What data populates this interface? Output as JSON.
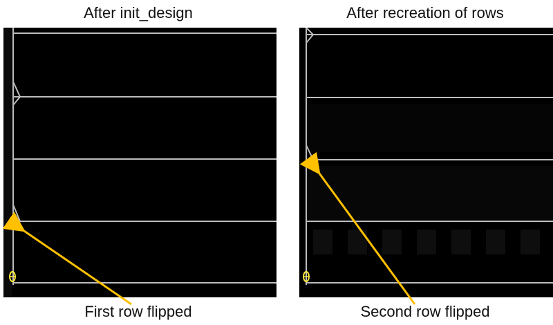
{
  "figure": {
    "left_panel": {
      "title": "After init_design",
      "caption": "First row flipped"
    },
    "right_panel": {
      "title": "After recreation of rows",
      "caption": "Second row flipped"
    },
    "colors": {
      "background": "#000000",
      "row_line": "#bfbfbf",
      "arrow": "#ffc000",
      "origin_marker": "#ffeb3b",
      "page": "#ffffff"
    }
  }
}
